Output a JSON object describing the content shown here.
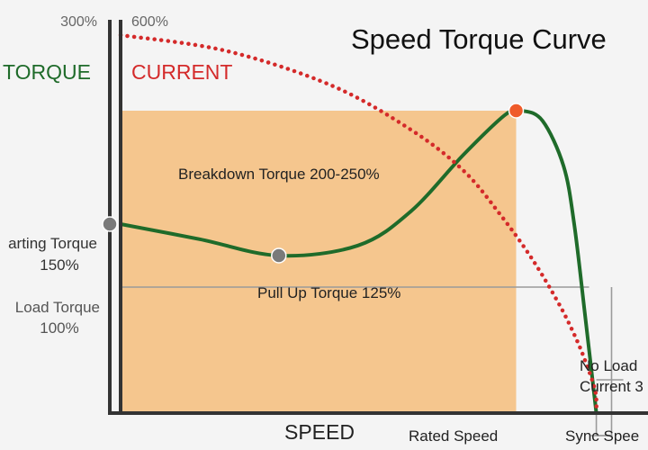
{
  "chart_data": {
    "type": "line",
    "title": "Speed Torque Curve",
    "xlabel": "SPEED",
    "axes": {
      "torque_label": "TORQUE",
      "current_label": "CURRENT",
      "torque_max_label": "300%",
      "current_max_label": "600%"
    },
    "series": [
      {
        "name": "TORQUE",
        "color": "#1f6b2a",
        "style": "solid",
        "x": [
          0,
          15,
          30,
          45,
          55,
          65,
          73,
          76,
          80,
          84,
          86,
          88,
          90.2
        ],
        "y": [
          150,
          138,
          125,
          133,
          160,
          205,
          237,
          240,
          232,
          196,
          150,
          80,
          0
        ]
      },
      {
        "name": "CURRENT",
        "color": "#d42a2a",
        "style": "dotted",
        "x": [
          0,
          20,
          40,
          55,
          65,
          72,
          78,
          83,
          86,
          88,
          90,
          90.2
        ],
        "y": [
          600,
          575,
          520,
          450,
          385,
          315,
          245,
          175,
          125,
          85,
          35,
          0
        ]
      }
    ],
    "points": [
      {
        "name": "Starting Torque",
        "label": "arting Torque",
        "value_label": "150%",
        "x": 0,
        "y": 150,
        "color": "#7a7a7a"
      },
      {
        "name": "Pull Up Torque",
        "label": "Pull Up Torque 125%",
        "x": 30,
        "y": 125,
        "color": "#7a7a7a"
      },
      {
        "name": "Breakdown Torque",
        "label": "Breakdown Torque 200-250%",
        "x": 75,
        "y": 240,
        "color": "#ef5b2a"
      }
    ],
    "load": {
      "label": "Load Torque",
      "value_label": "100%",
      "y": 100,
      "rated_speed": 75,
      "rated_speed_label": "Rated Speed"
    },
    "sync_speed": {
      "x": 90.2,
      "label": "Sync Spee"
    },
    "no_load_current": {
      "label_line1": "No Load",
      "label_line2": "Current 3"
    },
    "operating_region": {
      "y": 240,
      "x_end": 75,
      "color": "#f5c68e"
    },
    "xlim": [
      0,
      100
    ],
    "torque_ylim": [
      0,
      300
    ],
    "current_ylim": [
      0,
      600
    ]
  }
}
